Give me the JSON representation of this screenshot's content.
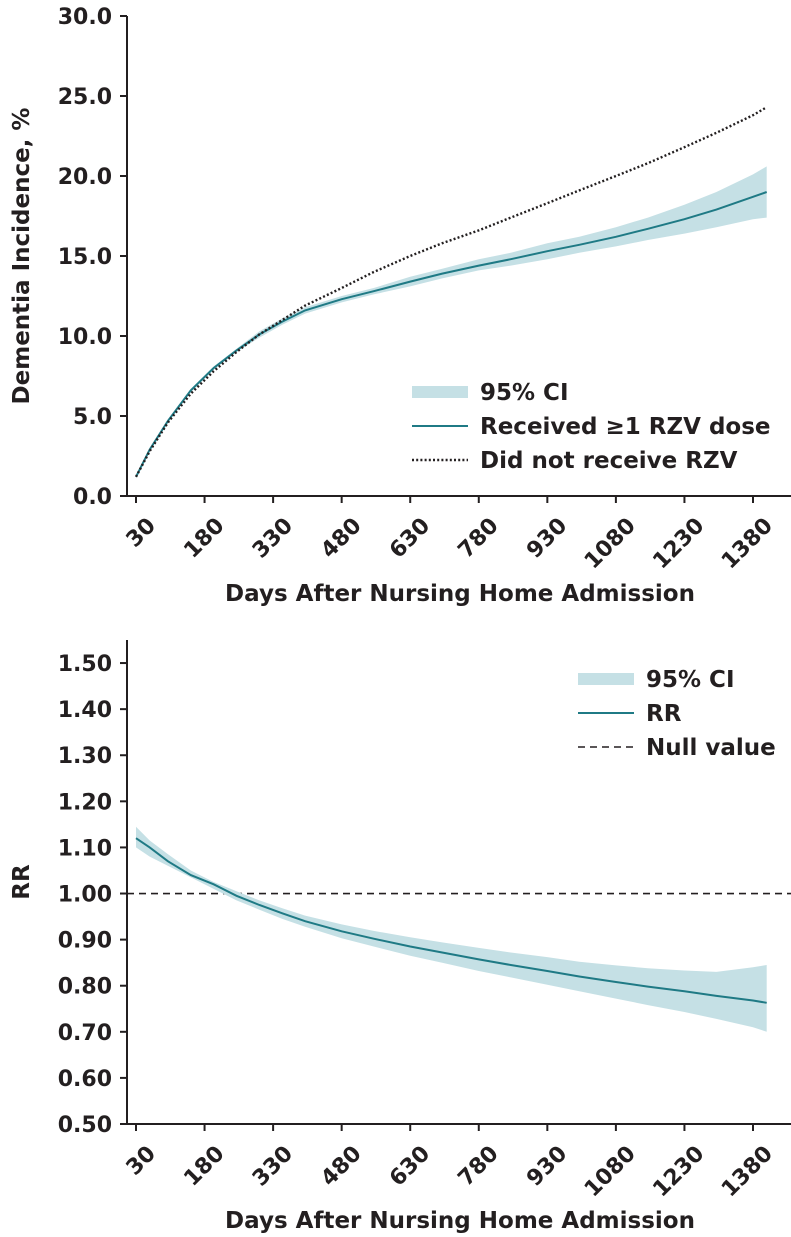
{
  "colors": {
    "ci": "#c5e0e5",
    "line": "#1f7a85",
    "ref": "#231f20",
    "axis": "#231f20"
  },
  "chart_data": [
    {
      "type": "line",
      "xlabel": "Days After Nursing Home Admission",
      "ylabel": "Dementia Incidence, %",
      "xticks": [
        "30",
        "180",
        "330",
        "480",
        "630",
        "780",
        "930",
        "1080",
        "1230",
        "1380"
      ],
      "yticks": [
        "0.0",
        "5.0",
        "10.0",
        "15.0",
        "20.0",
        "25.0",
        "30.0"
      ],
      "xlim": [
        30,
        1380
      ],
      "ylim": [
        0,
        30
      ],
      "legend": {
        "position": "center-right",
        "entries": [
          "95% CI",
          "Received ≥1 RZV dose",
          "Did not receive RZV"
        ]
      },
      "x": [
        30,
        60,
        100,
        150,
        200,
        250,
        300,
        350,
        400,
        480,
        550,
        630,
        700,
        780,
        850,
        930,
        1000,
        1080,
        1150,
        1230,
        1300,
        1380,
        1410
      ],
      "series": [
        {
          "name": "Received ≥1 RZV dose",
          "style": "solid",
          "values": [
            1.2,
            2.9,
            4.7,
            6.6,
            8.0,
            9.1,
            10.1,
            10.9,
            11.6,
            12.3,
            12.8,
            13.4,
            13.9,
            14.4,
            14.8,
            15.3,
            15.7,
            16.2,
            16.7,
            17.3,
            17.9,
            18.7,
            19.0
          ],
          "ci_lower": [
            1.1,
            2.8,
            4.6,
            6.5,
            7.9,
            9.0,
            9.9,
            10.7,
            11.4,
            12.1,
            12.6,
            13.1,
            13.6,
            14.1,
            14.4,
            14.8,
            15.2,
            15.6,
            16.0,
            16.4,
            16.8,
            17.3,
            17.4
          ],
          "ci_upper": [
            1.3,
            3.0,
            4.8,
            6.7,
            8.1,
            9.2,
            10.3,
            11.1,
            11.8,
            12.5,
            13.0,
            13.7,
            14.2,
            14.8,
            15.2,
            15.8,
            16.2,
            16.8,
            17.4,
            18.2,
            19.0,
            20.1,
            20.6
          ]
        },
        {
          "name": "Did not receive RZV",
          "style": "dotted",
          "values": [
            1.2,
            2.8,
            4.6,
            6.4,
            7.8,
            9.0,
            10.1,
            11.0,
            11.9,
            13.0,
            14.0,
            15.0,
            15.8,
            16.6,
            17.4,
            18.3,
            19.1,
            20.0,
            20.8,
            21.8,
            22.7,
            23.8,
            24.3
          ]
        }
      ]
    },
    {
      "type": "line",
      "xlabel": "Days After Nursing Home Admission",
      "ylabel": "RR",
      "xticks": [
        "30",
        "180",
        "330",
        "480",
        "630",
        "780",
        "930",
        "1080",
        "1230",
        "1380"
      ],
      "yticks": [
        "0.50",
        "0.60",
        "0.70",
        "0.80",
        "0.90",
        "1.00",
        "1.10",
        "1.20",
        "1.30",
        "1.40",
        "1.50"
      ],
      "xlim": [
        30,
        1380
      ],
      "ylim": [
        0.5,
        1.55
      ],
      "legend": {
        "position": "top-right",
        "entries": [
          "95% CI",
          "RR",
          "Null value"
        ]
      },
      "null_value": 1.0,
      "x": [
        30,
        60,
        100,
        150,
        200,
        250,
        300,
        350,
        400,
        480,
        550,
        630,
        700,
        780,
        850,
        930,
        1000,
        1080,
        1150,
        1230,
        1300,
        1380,
        1410
      ],
      "series": [
        {
          "name": "RR",
          "style": "solid",
          "values": [
            1.12,
            1.1,
            1.07,
            1.04,
            1.02,
            0.995,
            0.975,
            0.957,
            0.94,
            0.918,
            0.902,
            0.885,
            0.872,
            0.857,
            0.845,
            0.832,
            0.82,
            0.808,
            0.798,
            0.788,
            0.778,
            0.768,
            0.763
          ],
          "ci_lower": [
            1.1,
            1.08,
            1.06,
            1.035,
            1.01,
            0.985,
            0.965,
            0.945,
            0.928,
            0.903,
            0.885,
            0.865,
            0.85,
            0.832,
            0.818,
            0.802,
            0.788,
            0.772,
            0.758,
            0.743,
            0.728,
            0.71,
            0.7
          ],
          "ci_upper": [
            1.145,
            1.115,
            1.085,
            1.05,
            1.025,
            1.005,
            0.985,
            0.968,
            0.952,
            0.933,
            0.919,
            0.905,
            0.894,
            0.882,
            0.872,
            0.862,
            0.852,
            0.844,
            0.838,
            0.833,
            0.83,
            0.84,
            0.845
          ]
        }
      ]
    }
  ]
}
